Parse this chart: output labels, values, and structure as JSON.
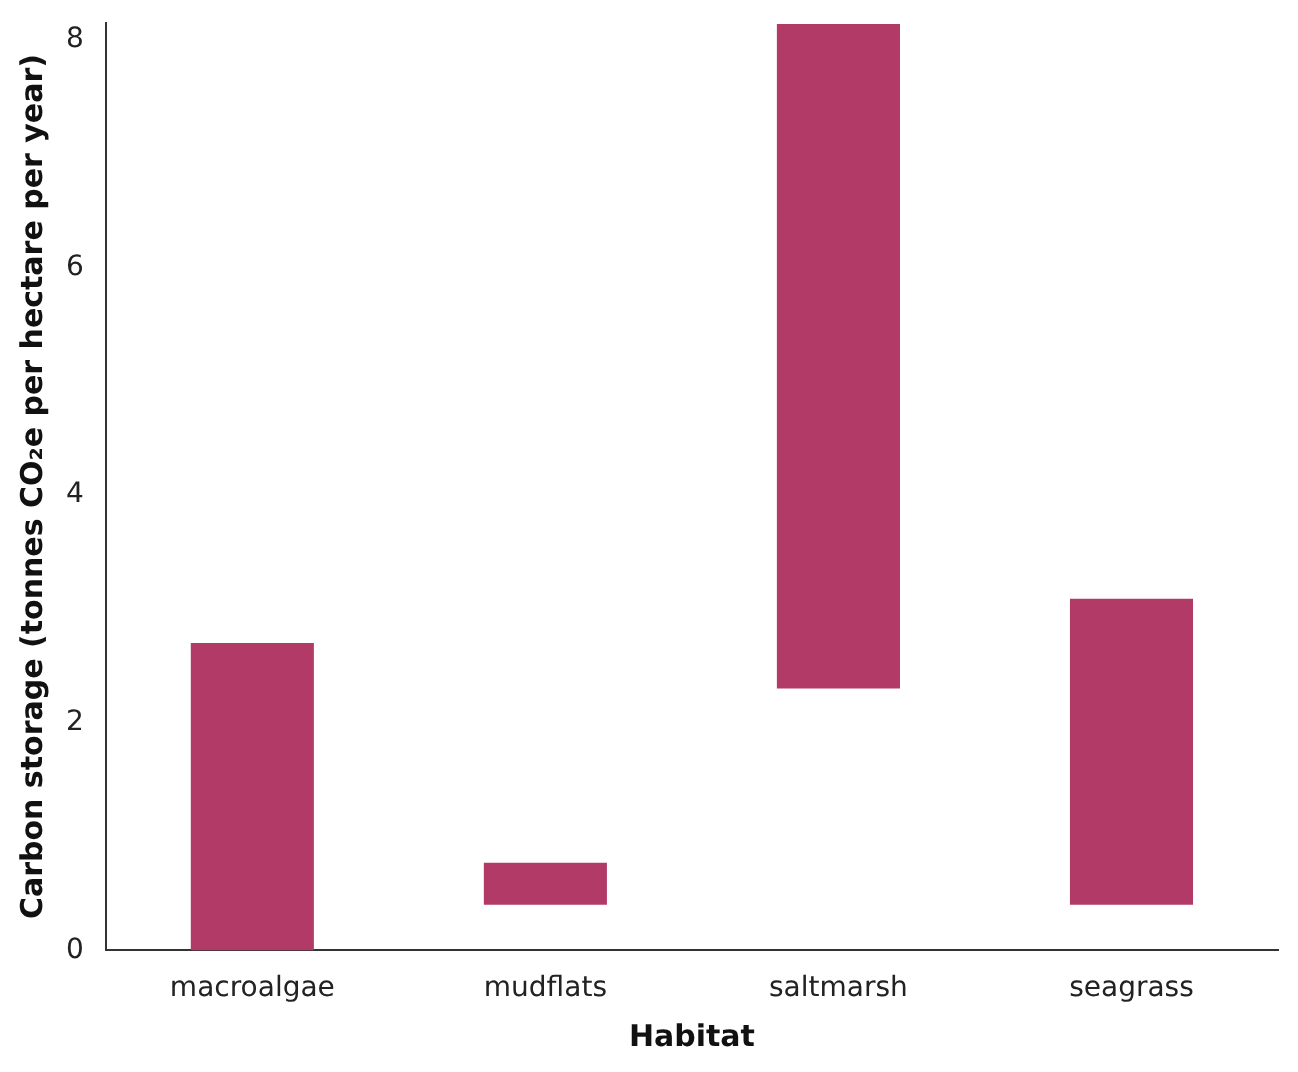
{
  "chart_data": {
    "type": "bar",
    "xlabel": "Habitat",
    "ylabel": "Carbon storage (tonnes CO₂e per hectare per year)",
    "categories": [
      "macroalgae",
      "mudflats",
      "saltmarsh",
      "seagrass"
    ],
    "series": [
      {
        "color": "#b23a66",
        "values": [
          2.7,
          0.37,
          5.84,
          2.69
        ],
        "base": [
          0,
          0.4,
          2.3,
          0.4
        ]
      }
    ],
    "ylim": [
      0,
      8.15
    ],
    "yticks": [
      0,
      2,
      4,
      6,
      8
    ],
    "grid": false,
    "legend": false
  }
}
